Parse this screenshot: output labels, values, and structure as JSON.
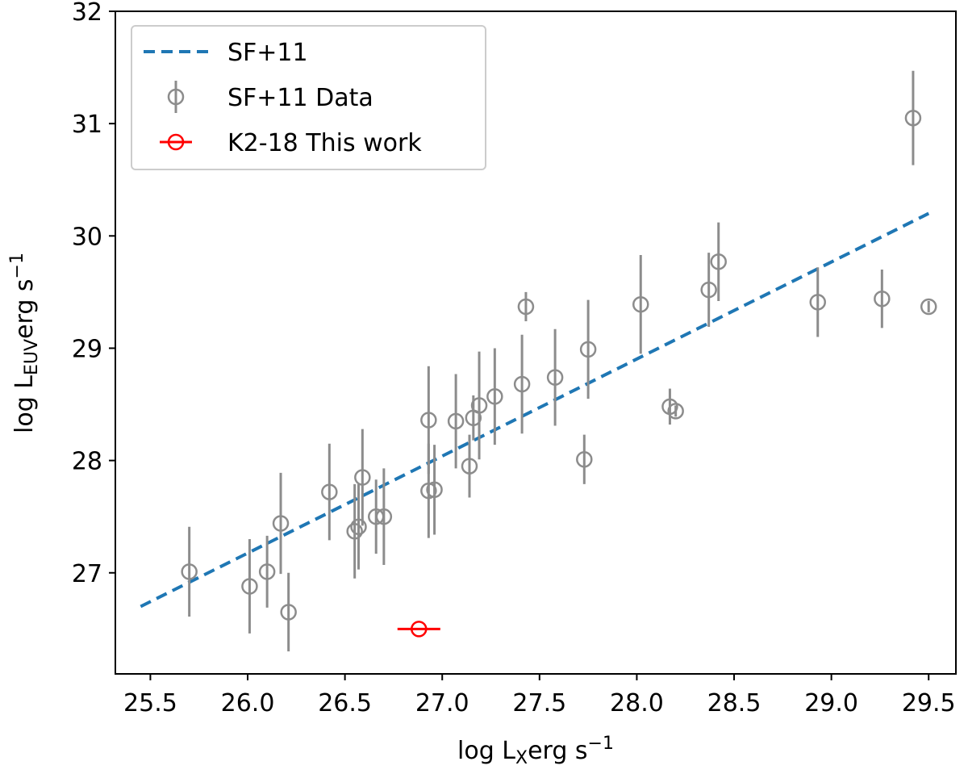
{
  "chart_data": {
    "type": "scatter",
    "xlabel": [
      "log L",
      "X",
      "erg s",
      "−1"
    ],
    "ylabel": [
      "log L",
      "EUV",
      "erg s",
      "−1"
    ],
    "xlim": [
      25.32,
      29.64
    ],
    "ylim": [
      26.1,
      32
    ],
    "xticks": [
      25.5,
      {
        "value": 26,
        "label": "26.0"
      },
      26.5,
      {
        "value": 27,
        "label": "27.0"
      },
      27.5,
      {
        "value": 28,
        "label": "28.0"
      },
      28.5,
      {
        "value": 29,
        "label": "29.0"
      },
      29.5
    ],
    "yticks": [
      27,
      28,
      29,
      30,
      31,
      32
    ],
    "legend": "upper left",
    "series": [
      {
        "name": "SF+11",
        "kind": "line",
        "style": "dashed",
        "color": "#1f77b4",
        "x": [
          25.45,
          29.5
        ],
        "values": [
          26.7,
          30.2
        ]
      },
      {
        "name": "SF+11 Data",
        "kind": "points",
        "color": "#8c8c8c",
        "x": [
          25.7,
          26.01,
          26.1,
          26.17,
          26.21,
          26.42,
          26.55,
          26.57,
          26.59,
          26.66,
          26.7,
          26.93,
          26.93,
          26.96,
          27.07,
          27.14,
          27.16,
          27.19,
          27.27,
          27.41,
          27.43,
          27.58,
          27.73,
          27.75,
          28.02,
          28.17,
          28.2,
          28.37,
          28.42,
          28.93,
          29.26,
          29.42,
          29.5
        ],
        "values": [
          27.01,
          26.88,
          27.01,
          27.44,
          26.65,
          27.72,
          27.37,
          27.41,
          27.85,
          27.5,
          27.5,
          28.36,
          27.73,
          27.74,
          28.35,
          27.95,
          28.38,
          28.49,
          28.57,
          28.68,
          29.37,
          28.74,
          28.01,
          28.99,
          29.39,
          28.48,
          28.44,
          29.52,
          29.77,
          29.41,
          29.44,
          31.05,
          29.37
        ],
        "yerr": [
          0.4,
          0.42,
          0.32,
          0.45,
          0.35,
          0.43,
          0.42,
          0.38,
          0.43,
          0.33,
          0.43,
          0.48,
          0.42,
          0.4,
          0.42,
          0.28,
          0.2,
          0.48,
          0.43,
          0.44,
          0.13,
          0.43,
          0.22,
          0.44,
          0.44,
          0.16,
          0.05,
          0.33,
          0.35,
          0.31,
          0.26,
          0.42,
          0.05
        ]
      },
      {
        "name": "K2-18 This work",
        "kind": "points",
        "color": "#ff0000",
        "x": [
          26.88
        ],
        "values": [
          26.5
        ],
        "xerr": [
          0.11
        ]
      }
    ]
  }
}
